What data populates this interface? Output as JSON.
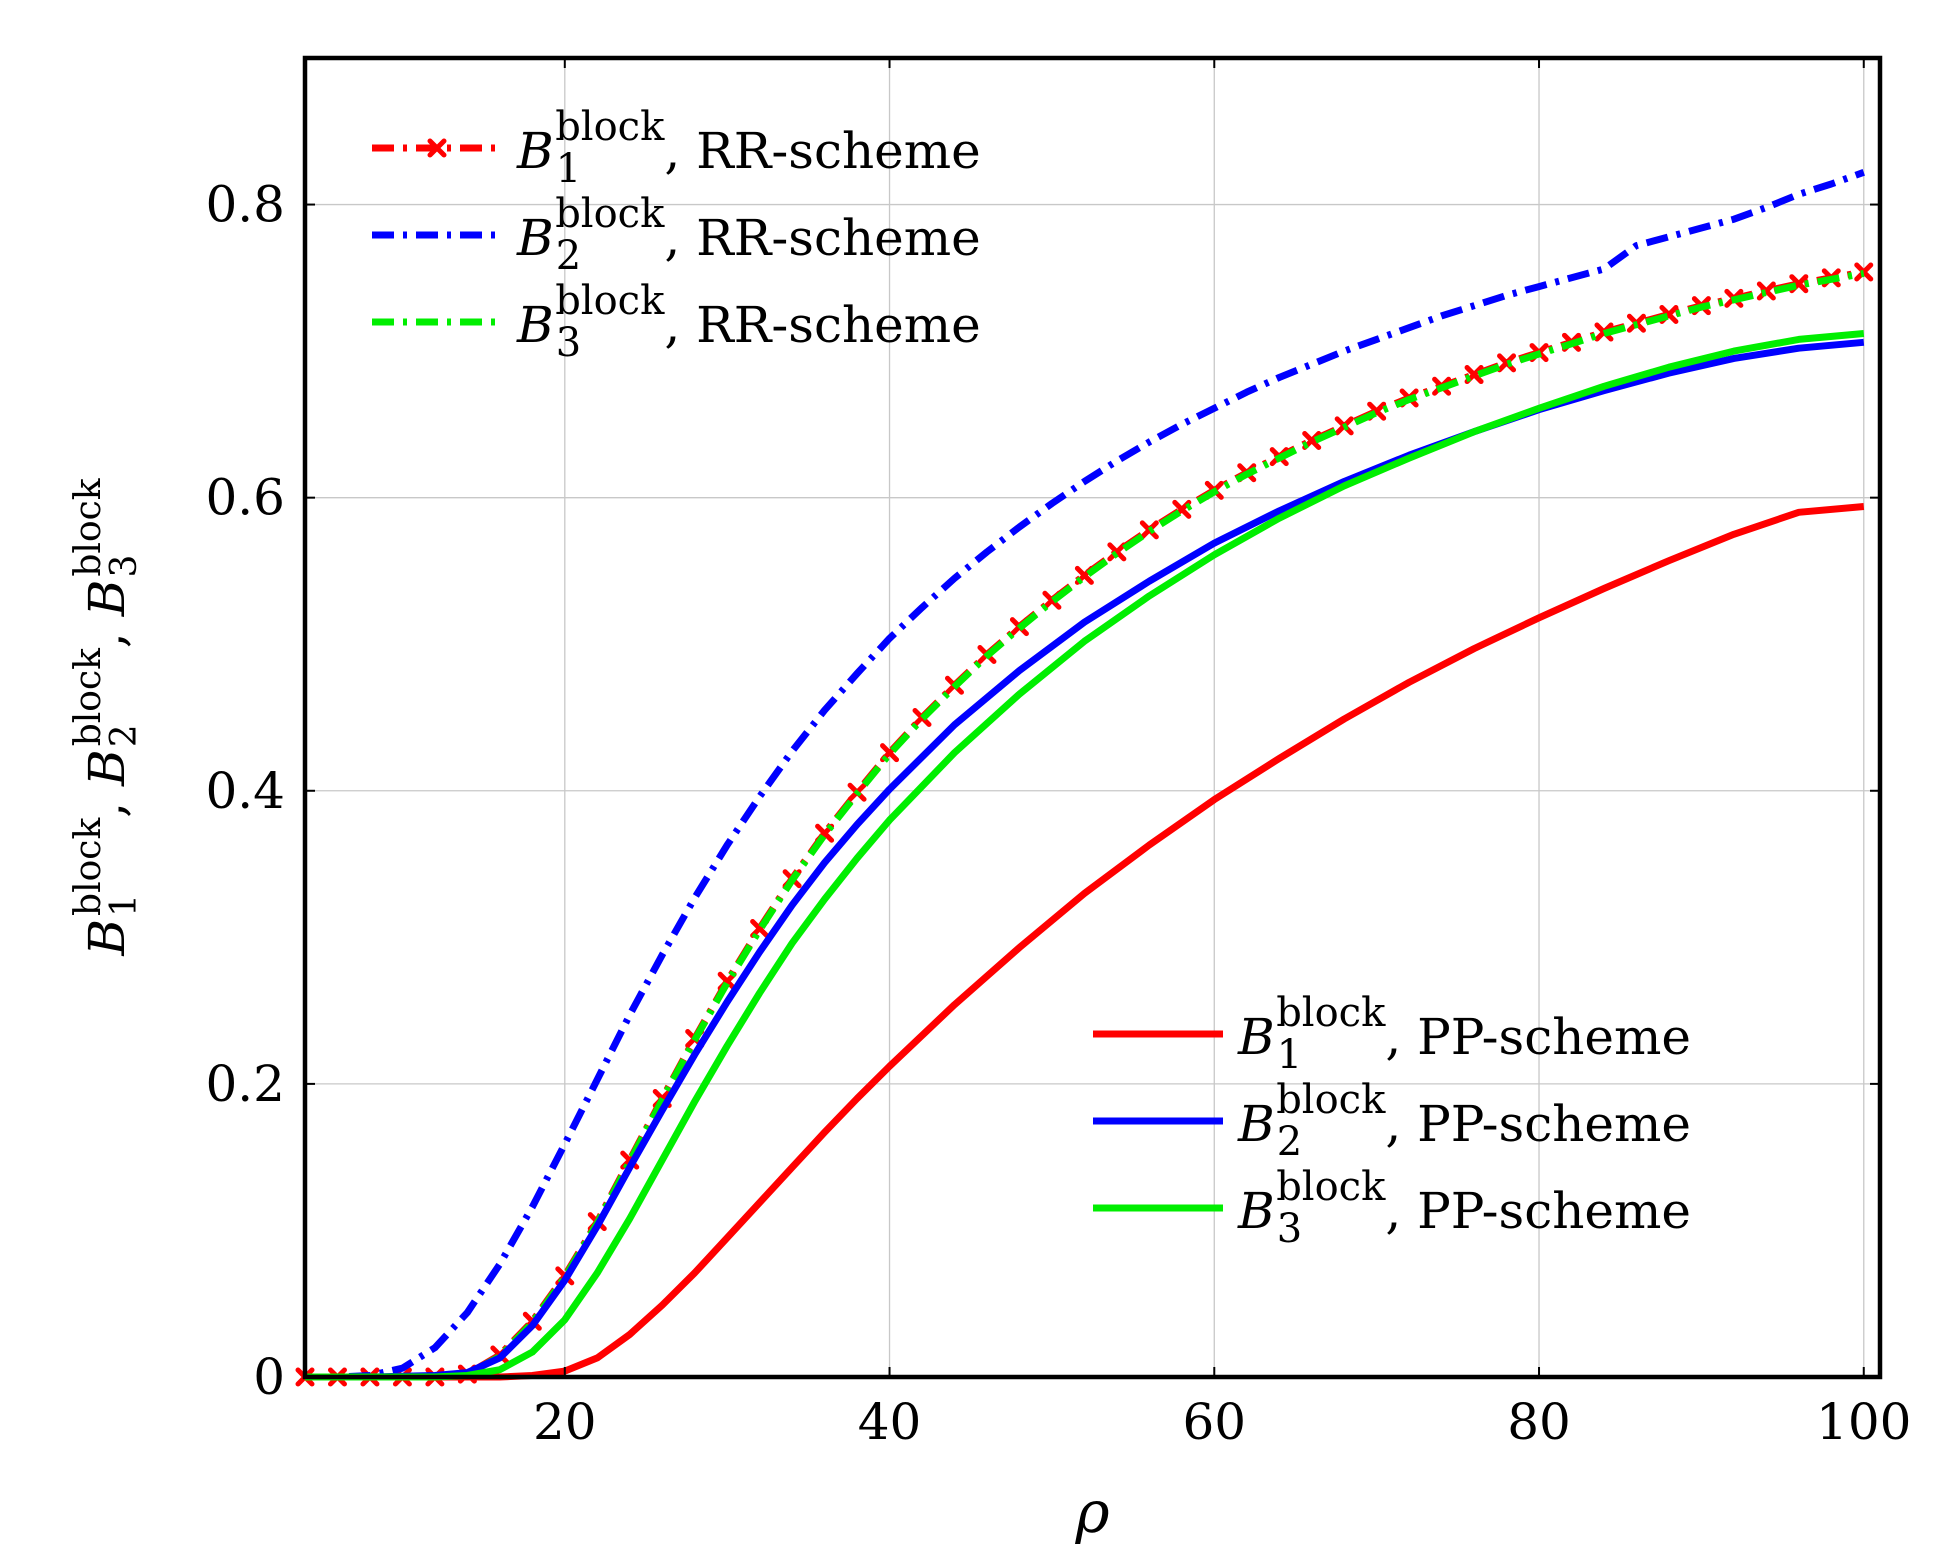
{
  "chart_data": {
    "type": "line",
    "title": "",
    "xlabel": "ρ",
    "ylabel_parts": [
      {
        "base": "B",
        "sub": "1",
        "sup": "block"
      },
      {
        "base": "B",
        "sub": "2",
        "sup": "block"
      },
      {
        "base": "B",
        "sub": "3",
        "sup": "block"
      }
    ],
    "ylabel_separator": ", ",
    "xlim": [
      4,
      101
    ],
    "ylim": [
      0,
      0.9
    ],
    "xticks": [
      20,
      40,
      60,
      80,
      100
    ],
    "xtick_labels": [
      "20",
      "40",
      "60",
      "80",
      "100"
    ],
    "yticks": [
      0,
      0.2,
      0.4,
      0.6,
      0.8
    ],
    "ytick_labels": [
      "0",
      "0.2",
      "0.4",
      "0.6",
      "0.8"
    ],
    "grid": true,
    "legends": [
      {
        "placement": "top-left",
        "entries": [
          0,
          1,
          2
        ]
      },
      {
        "placement": "bottom-right",
        "entries": [
          3,
          4,
          5
        ]
      }
    ],
    "series": [
      {
        "name": "B1 block, RR-scheme",
        "legend": {
          "base": "B",
          "sub": "1",
          "sup": "block",
          "suffix": ", RR-scheme"
        },
        "color": "#ff0000",
        "style": "dashdot",
        "marker": "x",
        "x": [
          4,
          6,
          8,
          10,
          12,
          14,
          16,
          18,
          20,
          22,
          24,
          26,
          28,
          30,
          32,
          34,
          36,
          38,
          40,
          42,
          44,
          46,
          48,
          50,
          52,
          54,
          56,
          58,
          60,
          62,
          64,
          66,
          68,
          70,
          72,
          74,
          76,
          78,
          80,
          82,
          84,
          86,
          88,
          90,
          92,
          94,
          96,
          98,
          100
        ],
        "y": [
          0.0,
          0.0,
          0.0,
          0.0,
          0.0,
          0.002,
          0.015,
          0.038,
          0.069,
          0.106,
          0.148,
          0.19,
          0.231,
          0.27,
          0.306,
          0.34,
          0.371,
          0.399,
          0.426,
          0.45,
          0.472,
          0.493,
          0.512,
          0.53,
          0.547,
          0.563,
          0.578,
          0.592,
          0.605,
          0.617,
          0.628,
          0.639,
          0.649,
          0.659,
          0.668,
          0.676,
          0.684,
          0.692,
          0.699,
          0.706,
          0.713,
          0.719,
          0.725,
          0.731,
          0.736,
          0.741,
          0.746,
          0.75,
          0.754
        ]
      },
      {
        "name": "B2 block, RR-scheme",
        "legend": {
          "base": "B",
          "sub": "2",
          "sup": "block",
          "suffix": ", RR-scheme"
        },
        "color": "#0000ff",
        "style": "dashdot",
        "marker": "none",
        "x": [
          4,
          6,
          8,
          10,
          12,
          14,
          16,
          18,
          20,
          22,
          24,
          26,
          28,
          30,
          32,
          34,
          36,
          38,
          40,
          42,
          44,
          46,
          48,
          50,
          52,
          54,
          56,
          58,
          60,
          62,
          64,
          66,
          68,
          70,
          72,
          74,
          76,
          78,
          80,
          82,
          84,
          86,
          88,
          90,
          92,
          94,
          96,
          98,
          100
        ],
        "y": [
          0.0,
          0.0,
          0.001,
          0.006,
          0.02,
          0.044,
          0.077,
          0.116,
          0.159,
          0.203,
          0.247,
          0.288,
          0.327,
          0.363,
          0.396,
          0.427,
          0.455,
          0.48,
          0.504,
          0.525,
          0.545,
          0.563,
          0.58,
          0.596,
          0.611,
          0.625,
          0.638,
          0.65,
          0.661,
          0.672,
          0.682,
          0.691,
          0.7,
          0.708,
          0.716,
          0.724,
          0.731,
          0.738,
          0.744,
          0.75,
          0.756,
          0.772,
          0.778,
          0.784,
          0.79,
          0.798,
          0.807,
          0.814,
          0.822
        ]
      },
      {
        "name": "B3 block, RR-scheme",
        "legend": {
          "base": "B",
          "sub": "3",
          "sup": "block",
          "suffix": ", RR-scheme"
        },
        "color": "#00ee00",
        "style": "dashdot",
        "marker": "none",
        "x": [
          4,
          6,
          8,
          10,
          12,
          14,
          16,
          18,
          20,
          22,
          24,
          26,
          28,
          30,
          32,
          34,
          36,
          38,
          40,
          42,
          44,
          46,
          48,
          50,
          52,
          54,
          56,
          58,
          60,
          62,
          64,
          66,
          68,
          70,
          72,
          74,
          76,
          78,
          80,
          82,
          84,
          86,
          88,
          90,
          92,
          94,
          96,
          98,
          100
        ],
        "y": [
          0.0,
          0.0,
          0.0,
          0.0,
          0.0,
          0.002,
          0.014,
          0.037,
          0.068,
          0.105,
          0.147,
          0.189,
          0.23,
          0.269,
          0.305,
          0.339,
          0.37,
          0.398,
          0.425,
          0.449,
          0.471,
          0.492,
          0.511,
          0.529,
          0.546,
          0.562,
          0.577,
          0.591,
          0.604,
          0.616,
          0.627,
          0.638,
          0.648,
          0.658,
          0.667,
          0.675,
          0.683,
          0.691,
          0.698,
          0.705,
          0.712,
          0.718,
          0.724,
          0.73,
          0.735,
          0.74,
          0.745,
          0.749,
          0.753
        ]
      },
      {
        "name": "B1 block, PP-scheme",
        "legend": {
          "base": "B",
          "sub": "1",
          "sup": "block",
          "suffix": ", PP-scheme"
        },
        "color": "#ff0000",
        "style": "solid",
        "marker": "none",
        "x": [
          4,
          8,
          12,
          16,
          18,
          20,
          22,
          24,
          26,
          28,
          30,
          32,
          34,
          36,
          38,
          40,
          44,
          48,
          52,
          56,
          60,
          64,
          68,
          72,
          76,
          80,
          84,
          88,
          92,
          96,
          100
        ],
        "y": [
          0.0,
          0.0,
          0.0,
          0.0,
          0.001,
          0.004,
          0.013,
          0.029,
          0.049,
          0.071,
          0.095,
          0.119,
          0.143,
          0.167,
          0.19,
          0.212,
          0.254,
          0.293,
          0.33,
          0.363,
          0.394,
          0.422,
          0.449,
          0.474,
          0.497,
          0.518,
          0.538,
          0.557,
          0.575,
          0.59,
          0.594
        ]
      },
      {
        "name": "B2 block, PP-scheme",
        "legend": {
          "base": "B",
          "sub": "2",
          "sup": "block",
          "suffix": ", PP-scheme"
        },
        "color": "#0000ff",
        "style": "solid",
        "marker": "none",
        "x": [
          4,
          8,
          12,
          14,
          16,
          18,
          20,
          22,
          24,
          26,
          28,
          30,
          32,
          34,
          36,
          38,
          40,
          44,
          48,
          52,
          56,
          60,
          64,
          68,
          72,
          76,
          80,
          84,
          88,
          92,
          96,
          100
        ],
        "y": [
          0.0,
          0.0,
          0.001,
          0.003,
          0.013,
          0.035,
          0.066,
          0.103,
          0.143,
          0.182,
          0.22,
          0.256,
          0.29,
          0.322,
          0.351,
          0.377,
          0.401,
          0.445,
          0.482,
          0.515,
          0.543,
          0.569,
          0.591,
          0.611,
          0.629,
          0.645,
          0.66,
          0.673,
          0.685,
          0.695,
          0.702,
          0.706
        ]
      },
      {
        "name": "B3 block, PP-scheme",
        "legend": {
          "base": "B",
          "sub": "3",
          "sup": "block",
          "suffix": ", PP-scheme"
        },
        "color": "#00ee00",
        "style": "solid",
        "marker": "none",
        "x": [
          4,
          8,
          12,
          14,
          16,
          18,
          20,
          22,
          24,
          26,
          28,
          30,
          32,
          34,
          36,
          38,
          40,
          44,
          48,
          52,
          56,
          60,
          64,
          68,
          72,
          76,
          80,
          84,
          88,
          92,
          96,
          100
        ],
        "y": [
          0.0,
          0.0,
          0.0,
          0.001,
          0.005,
          0.017,
          0.039,
          0.071,
          0.108,
          0.148,
          0.188,
          0.226,
          0.262,
          0.296,
          0.326,
          0.354,
          0.38,
          0.426,
          0.466,
          0.502,
          0.533,
          0.561,
          0.586,
          0.608,
          0.627,
          0.645,
          0.661,
          0.676,
          0.689,
          0.7,
          0.708,
          0.712
        ]
      }
    ]
  }
}
